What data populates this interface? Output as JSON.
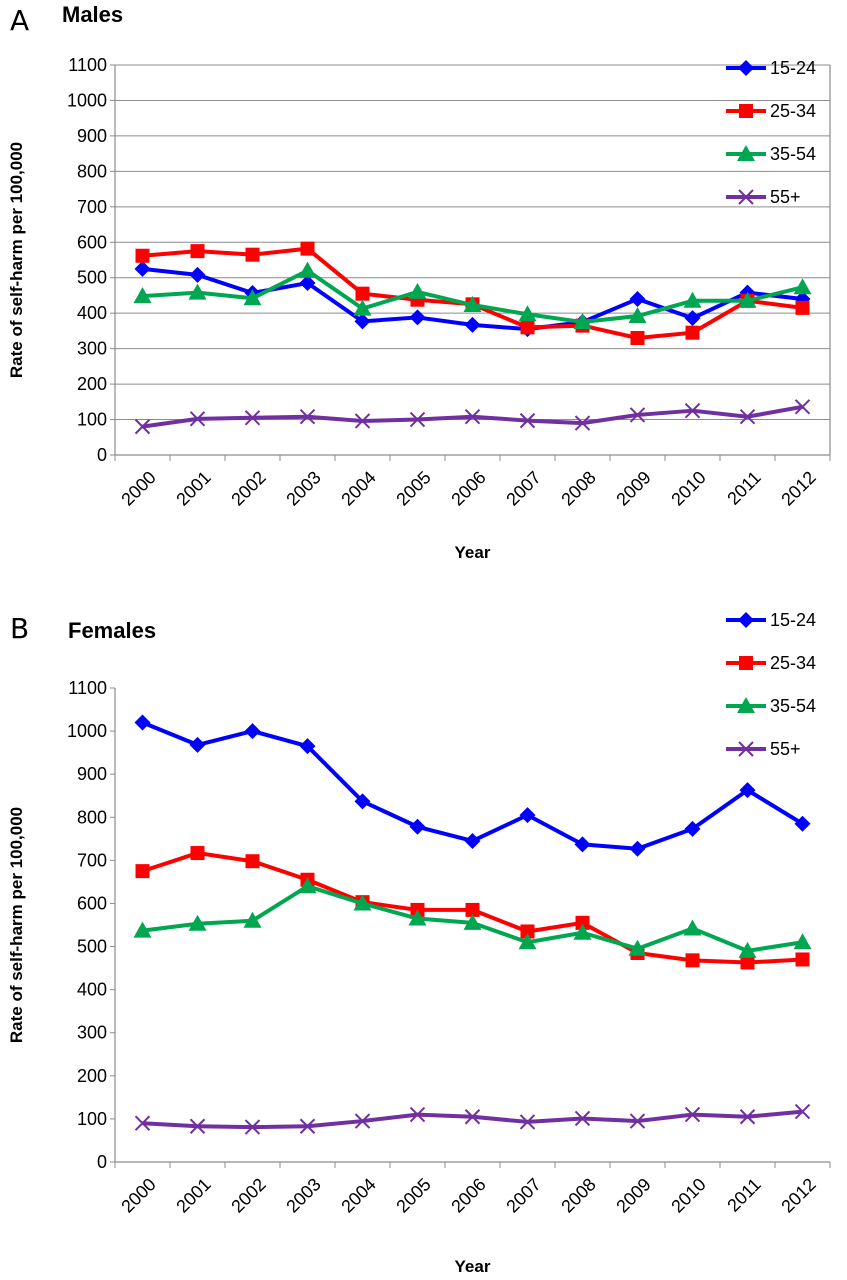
{
  "chart_data": [
    {
      "type": "line",
      "panel_label": "A",
      "title": "Males",
      "xlabel": "Year",
      "ylabel": "Rate of self-harm per 100,000",
      "ylim": [
        0,
        1100
      ],
      "yticks": [
        0,
        100,
        200,
        300,
        400,
        500,
        600,
        700,
        800,
        900,
        1000,
        1100
      ],
      "grid": true,
      "legend_position": "top-right",
      "categories": [
        "2000",
        "2001",
        "2002",
        "2003",
        "2004",
        "2005",
        "2006",
        "2007",
        "2008",
        "2009",
        "2010",
        "2011",
        "2012"
      ],
      "series": [
        {
          "name": "15-24",
          "color": "#0000FF",
          "marker": "diamond",
          "values": [
            525,
            508,
            457,
            485,
            377,
            388,
            367,
            355,
            375,
            440,
            386,
            458,
            440
          ]
        },
        {
          "name": "25-34",
          "color": "#FF0000",
          "marker": "square",
          "values": [
            562,
            575,
            565,
            582,
            455,
            438,
            425,
            360,
            365,
            330,
            345,
            435,
            415
          ]
        },
        {
          "name": "35-54",
          "color": "#00A650",
          "marker": "triangle",
          "values": [
            448,
            458,
            442,
            520,
            413,
            460,
            423,
            397,
            375,
            392,
            435,
            435,
            473
          ]
        },
        {
          "name": "55+",
          "color": "#7030A0",
          "marker": "x",
          "values": [
            80,
            102,
            105,
            108,
            96,
            100,
            108,
            97,
            90,
            113,
            125,
            108,
            136
          ]
        }
      ]
    },
    {
      "type": "line",
      "panel_label": "B",
      "title": "Females",
      "xlabel": "Year",
      "ylabel": "Rate of self-harm per 100,000",
      "ylim": [
        0,
        1100
      ],
      "yticks": [
        0,
        100,
        200,
        300,
        400,
        500,
        600,
        700,
        800,
        900,
        1000,
        1100
      ],
      "grid": false,
      "legend_position": "top-right",
      "categories": [
        "2000",
        "2001",
        "2002",
        "2003",
        "2004",
        "2005",
        "2006",
        "2007",
        "2008",
        "2009",
        "2010",
        "2011",
        "2012"
      ],
      "series": [
        {
          "name": "15-24",
          "color": "#0000FF",
          "marker": "diamond",
          "values": [
            1020,
            968,
            1000,
            965,
            837,
            778,
            745,
            805,
            737,
            727,
            773,
            863,
            785
          ]
        },
        {
          "name": "25-34",
          "color": "#FF0000",
          "marker": "square",
          "values": [
            675,
            717,
            698,
            655,
            603,
            585,
            585,
            535,
            555,
            485,
            468,
            463,
            470
          ]
        },
        {
          "name": "35-54",
          "color": "#00A650",
          "marker": "triangle",
          "values": [
            537,
            553,
            560,
            640,
            600,
            565,
            555,
            510,
            532,
            495,
            542,
            490,
            510
          ]
        },
        {
          "name": "55+",
          "color": "#7030A0",
          "marker": "x",
          "values": [
            90,
            83,
            81,
            83,
            95,
            110,
            105,
            93,
            101,
            95,
            110,
            105,
            117
          ]
        }
      ]
    }
  ]
}
